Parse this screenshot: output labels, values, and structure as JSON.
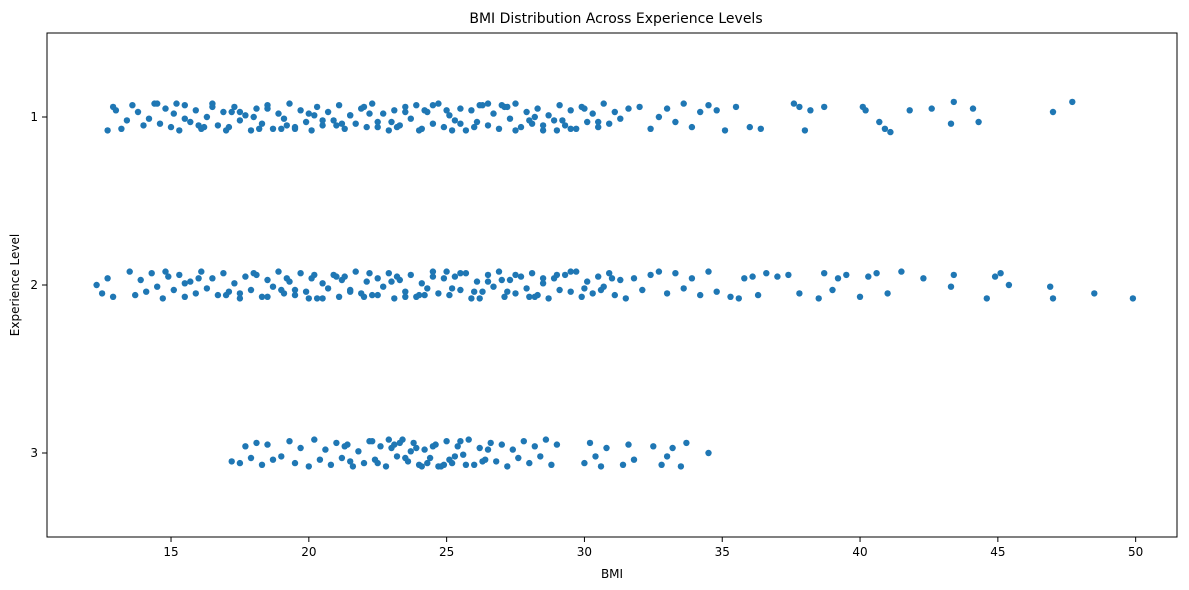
{
  "chart_data": {
    "type": "scatter",
    "title": "BMI Distribution Across Experience Levels",
    "xlabel": "BMI",
    "ylabel": "Experience Level",
    "xlim": [
      10.5,
      51.5
    ],
    "x_ticks": [
      15,
      20,
      25,
      30,
      35,
      40,
      45,
      50
    ],
    "categories": [
      "1",
      "2",
      "3"
    ],
    "grid": false,
    "legend": "none",
    "series": [
      {
        "category": "1",
        "color": "#1f77b4",
        "values": [
          12.7,
          12.9,
          13.0,
          13.2,
          13.4,
          13.6,
          13.8,
          14.0,
          14.2,
          14.4,
          14.6,
          14.8,
          15.0,
          15.1,
          15.3,
          15.5,
          15.7,
          15.9,
          16.1,
          16.3,
          16.5,
          16.7,
          16.9,
          17.1,
          17.3,
          17.5,
          17.7,
          17.9,
          18.1,
          18.3,
          18.5,
          18.7,
          18.9,
          19.1,
          19.3,
          19.5,
          19.7,
          19.9,
          20.1,
          20.3,
          20.5,
          20.7,
          20.9,
          21.1,
          21.3,
          21.5,
          21.7,
          21.9,
          22.1,
          22.3,
          22.5,
          22.7,
          22.9,
          23.1,
          23.3,
          23.5,
          23.7,
          23.9,
          24.1,
          24.3,
          24.5,
          24.7,
          24.9,
          25.1,
          25.3,
          25.5,
          25.7,
          25.9,
          26.1,
          26.3,
          26.5,
          26.7,
          26.9,
          27.1,
          27.3,
          27.5,
          27.7,
          27.9,
          28.1,
          28.3,
          28.5,
          28.7,
          28.9,
          29.1,
          29.3,
          29.5,
          29.7,
          29.9,
          30.1,
          30.3,
          30.5,
          30.7,
          30.9,
          31.1,
          31.3,
          31.6,
          32.0,
          32.4,
          32.7,
          33.0,
          33.3,
          33.6,
          33.9,
          34.2,
          34.5,
          34.8,
          35.1,
          35.5,
          36.0,
          36.4,
          37.6,
          37.8,
          38.0,
          38.2,
          38.7,
          40.1,
          40.2,
          40.7,
          40.9,
          41.1,
          41.8,
          42.6,
          43.3,
          43.4,
          44.1,
          44.3,
          47.0,
          47.7,
          16.0,
          17.0,
          18.0,
          19.0,
          20.0,
          21.0,
          22.0,
          23.0,
          24.0,
          25.0,
          26.0,
          27.0,
          28.0,
          29.0,
          30.0,
          23.5,
          24.5,
          22.5,
          21.5,
          25.5,
          26.5,
          19.5,
          20.5,
          18.5,
          27.5,
          17.5,
          28.5,
          16.5,
          15.5,
          29.5,
          14.5,
          30.5,
          24.2,
          23.2,
          22.2,
          25.2,
          26.2,
          21.2,
          20.2,
          19.2,
          27.2,
          18.2,
          28.2,
          17.2,
          16.2,
          15.2,
          29.2
        ],
        "jitter": [
          0.08,
          -0.06,
          -0.04,
          0.07,
          0.02,
          -0.07,
          -0.03,
          0.05,
          0.01,
          -0.08,
          0.04,
          -0.05,
          0.06,
          -0.02,
          0.08,
          -0.07,
          0.03,
          -0.04,
          0.07,
          0.0,
          -0.08,
          0.05,
          -0.03,
          0.06,
          -0.06,
          0.02,
          -0.01,
          0.08,
          -0.05,
          0.04,
          -0.07,
          0.07,
          -0.02,
          0.01,
          -0.08,
          0.06,
          -0.04,
          0.03,
          0.08,
          -0.06,
          0.05,
          -0.03,
          0.02,
          -0.07,
          0.07,
          -0.01,
          0.04,
          -0.05,
          0.06,
          -0.08,
          0.03,
          -0.02,
          0.08,
          -0.04,
          0.05,
          -0.06,
          0.01,
          -0.07,
          0.07,
          -0.03,
          0.04,
          -0.08,
          0.06,
          -0.01,
          0.02,
          -0.05,
          0.08,
          -0.04,
          0.03,
          -0.07,
          0.05,
          -0.02,
          0.07,
          -0.06,
          0.01,
          -0.08,
          0.06,
          -0.03,
          0.04,
          -0.05,
          0.08,
          -0.01,
          0.02,
          -0.07,
          0.05,
          -0.04,
          0.07,
          -0.06,
          0.03,
          -0.02,
          0.06,
          -0.08,
          0.04,
          -0.03,
          0.01,
          -0.05,
          -0.06,
          0.07,
          0.0,
          -0.05,
          0.03,
          -0.08,
          0.06,
          -0.03,
          -0.07,
          -0.04,
          0.08,
          -0.06,
          0.06,
          0.07,
          -0.08,
          -0.06,
          0.08,
          -0.04,
          -0.06,
          -0.06,
          -0.04,
          0.03,
          0.07,
          0.09,
          -0.04,
          -0.05,
          0.04,
          -0.09,
          -0.05,
          0.03,
          -0.03,
          -0.09,
          0.05,
          0.08,
          0.0,
          0.07,
          -0.02,
          0.05,
          -0.06,
          0.03,
          0.08,
          -0.04,
          0.06,
          -0.07,
          0.02,
          0.08,
          -0.05,
          -0.03,
          -0.07,
          0.06,
          -0.01,
          0.04,
          -0.08,
          0.07,
          0.02,
          -0.05,
          0.08,
          -0.03,
          0.05,
          -0.06,
          0.01,
          0.07,
          -0.08,
          0.03,
          -0.04,
          0.06,
          -0.02,
          0.08,
          -0.07,
          0.04,
          -0.01,
          0.05,
          -0.06,
          0.07,
          0.0,
          -0.03,
          0.06,
          -0.08,
          0.02,
          -0.05,
          0.07
        ]
      },
      {
        "category": "2",
        "color": "#1f77b4",
        "values": [
          12.3,
          12.5,
          12.7,
          12.9,
          13.5,
          13.7,
          13.9,
          14.1,
          14.3,
          14.5,
          14.7,
          14.9,
          15.1,
          15.3,
          15.5,
          15.7,
          15.9,
          16.1,
          16.3,
          16.5,
          16.7,
          16.9,
          17.1,
          17.3,
          17.5,
          17.7,
          17.9,
          18.1,
          18.3,
          18.5,
          18.7,
          18.9,
          19.1,
          19.3,
          19.5,
          19.7,
          19.9,
          20.1,
          20.3,
          20.5,
          20.7,
          20.9,
          21.1,
          21.3,
          21.5,
          21.7,
          21.9,
          22.1,
          22.3,
          22.5,
          22.7,
          22.9,
          23.1,
          23.3,
          23.5,
          23.7,
          23.9,
          24.1,
          24.3,
          24.5,
          24.7,
          24.9,
          25.1,
          25.3,
          25.5,
          25.7,
          25.9,
          26.1,
          26.3,
          26.5,
          26.7,
          26.9,
          27.1,
          27.3,
          27.5,
          27.7,
          27.9,
          28.1,
          28.3,
          28.5,
          28.7,
          28.9,
          29.1,
          29.3,
          29.5,
          29.7,
          29.9,
          30.1,
          30.3,
          30.5,
          30.7,
          30.9,
          31.1,
          31.3,
          31.5,
          31.8,
          32.1,
          32.4,
          32.7,
          33.0,
          33.3,
          33.6,
          33.9,
          34.2,
          34.5,
          34.8,
          35.3,
          35.6,
          35.8,
          36.1,
          36.3,
          36.6,
          37.0,
          37.4,
          37.8,
          38.5,
          38.7,
          39.0,
          39.2,
          39.5,
          40.0,
          40.3,
          40.6,
          41.0,
          41.5,
          42.3,
          43.3,
          43.4,
          44.6,
          44.9,
          45.1,
          45.4,
          46.9,
          47.0,
          48.5,
          49.9,
          16.0,
          17.0,
          18.0,
          19.0,
          20.0,
          21.0,
          22.0,
          23.0,
          24.0,
          25.0,
          26.0,
          27.0,
          28.0,
          29.0,
          30.0,
          31.0,
          23.5,
          24.5,
          22.5,
          25.5,
          21.5,
          26.5,
          20.5,
          27.5,
          19.5,
          28.5,
          18.5,
          29.5,
          17.5,
          15.5,
          24.2,
          23.2,
          25.2,
          22.2,
          26.2,
          21.2,
          27.2,
          20.2,
          28.2,
          19.2,
          14.8,
          30.6
        ],
        "jitter": [
          0.0,
          0.05,
          -0.04,
          0.07,
          -0.08,
          0.06,
          -0.03,
          0.04,
          -0.07,
          0.01,
          0.08,
          -0.05,
          0.03,
          -0.06,
          0.07,
          -0.02,
          0.05,
          -0.08,
          0.02,
          -0.04,
          0.06,
          -0.07,
          0.04,
          -0.01,
          0.08,
          -0.05,
          0.03,
          -0.06,
          0.07,
          -0.03,
          0.01,
          -0.08,
          0.05,
          -0.02,
          0.06,
          -0.07,
          0.04,
          -0.04,
          0.08,
          -0.01,
          0.02,
          -0.06,
          0.07,
          -0.05,
          0.03,
          -0.08,
          0.05,
          -0.02,
          0.06,
          -0.04,
          0.01,
          -0.07,
          0.08,
          -0.03,
          0.04,
          -0.06,
          0.07,
          -0.01,
          0.02,
          -0.08,
          0.05,
          -0.04,
          0.06,
          -0.05,
          0.03,
          -0.07,
          0.08,
          -0.02,
          0.04,
          -0.06,
          0.01,
          -0.08,
          0.07,
          -0.03,
          0.05,
          -0.05,
          0.02,
          -0.07,
          0.06,
          -0.01,
          0.08,
          -0.04,
          0.03,
          -0.06,
          0.04,
          -0.08,
          0.07,
          -0.02,
          0.05,
          -0.05,
          0.01,
          -0.07,
          0.06,
          -0.03,
          0.08,
          -0.04,
          0.03,
          -0.06,
          -0.08,
          0.05,
          -0.07,
          0.02,
          -0.04,
          0.06,
          -0.08,
          0.04,
          0.07,
          0.08,
          -0.04,
          -0.05,
          0.06,
          -0.07,
          -0.05,
          -0.06,
          0.05,
          0.08,
          -0.07,
          0.03,
          -0.04,
          -0.06,
          0.07,
          -0.05,
          -0.07,
          0.05,
          -0.08,
          -0.04,
          0.01,
          -0.06,
          0.08,
          -0.05,
          -0.07,
          0.0,
          0.01,
          0.08,
          0.05,
          0.08,
          -0.04,
          0.06,
          -0.07,
          0.03,
          0.08,
          -0.05,
          0.07,
          -0.02,
          0.06,
          -0.08,
          0.04,
          -0.03,
          0.07,
          -0.06,
          0.02,
          -0.04,
          0.07,
          -0.05,
          0.06,
          -0.07,
          0.04,
          -0.02,
          0.08,
          -0.06,
          0.03,
          -0.04,
          0.07,
          -0.08,
          0.05,
          -0.01,
          0.06,
          -0.05,
          0.02,
          -0.07,
          0.08,
          -0.03,
          0.04,
          -0.06,
          0.07,
          -0.04,
          -0.08,
          0.03,
          0.06,
          -0.05,
          0.07
        ]
      },
      {
        "category": "3",
        "color": "#1f77b4",
        "values": [
          17.2,
          17.5,
          17.7,
          17.9,
          18.1,
          18.3,
          18.5,
          18.7,
          19.0,
          19.3,
          19.5,
          19.7,
          20.0,
          20.2,
          20.4,
          20.6,
          20.8,
          21.0,
          21.2,
          21.4,
          21.6,
          21.8,
          22.0,
          22.2,
          22.4,
          22.6,
          22.8,
          23.0,
          23.2,
          23.4,
          23.6,
          23.8,
          24.0,
          24.2,
          24.4,
          24.6,
          24.8,
          25.0,
          25.2,
          25.4,
          25.6,
          25.8,
          26.0,
          26.2,
          26.4,
          26.6,
          26.8,
          27.0,
          27.2,
          27.4,
          27.6,
          27.8,
          28.0,
          28.2,
          28.4,
          28.6,
          28.8,
          29.0,
          30.0,
          30.2,
          30.4,
          30.6,
          30.8,
          31.4,
          31.6,
          31.8,
          32.5,
          32.8,
          33.0,
          33.2,
          33.5,
          33.7,
          34.5,
          23.5,
          24.5,
          22.5,
          25.5,
          21.5,
          26.5,
          24.1,
          23.1,
          25.1,
          22.9,
          24.9,
          23.9,
          24.3,
          23.3,
          25.3,
          22.3,
          26.3,
          21.3,
          24.7,
          23.7,
          25.7
        ],
        "jitter": [
          0.05,
          0.06,
          -0.04,
          0.03,
          -0.06,
          0.07,
          -0.05,
          0.04,
          0.02,
          -0.07,
          0.06,
          -0.03,
          0.08,
          -0.08,
          0.04,
          -0.02,
          0.07,
          -0.06,
          0.03,
          -0.05,
          0.08,
          -0.01,
          0.06,
          -0.07,
          0.04,
          -0.04,
          0.08,
          -0.03,
          0.02,
          -0.08,
          0.05,
          -0.06,
          0.07,
          -0.02,
          0.03,
          -0.05,
          0.08,
          -0.07,
          0.06,
          -0.04,
          0.01,
          -0.08,
          0.07,
          -0.03,
          0.04,
          -0.06,
          0.05,
          -0.05,
          0.08,
          -0.02,
          0.03,
          -0.07,
          0.06,
          -0.04,
          0.02,
          -0.08,
          0.07,
          -0.05,
          0.06,
          -0.06,
          0.02,
          0.08,
          -0.03,
          0.07,
          -0.05,
          0.04,
          -0.04,
          0.07,
          0.02,
          -0.03,
          0.08,
          -0.06,
          0.0,
          0.03,
          -0.04,
          0.06,
          -0.07,
          0.05,
          -0.02,
          0.08,
          -0.05,
          0.04,
          -0.08,
          0.07,
          -0.03,
          0.06,
          -0.06,
          0.02,
          -0.07,
          0.05,
          -0.04,
          0.08,
          -0.01,
          0.07
        ]
      }
    ]
  }
}
